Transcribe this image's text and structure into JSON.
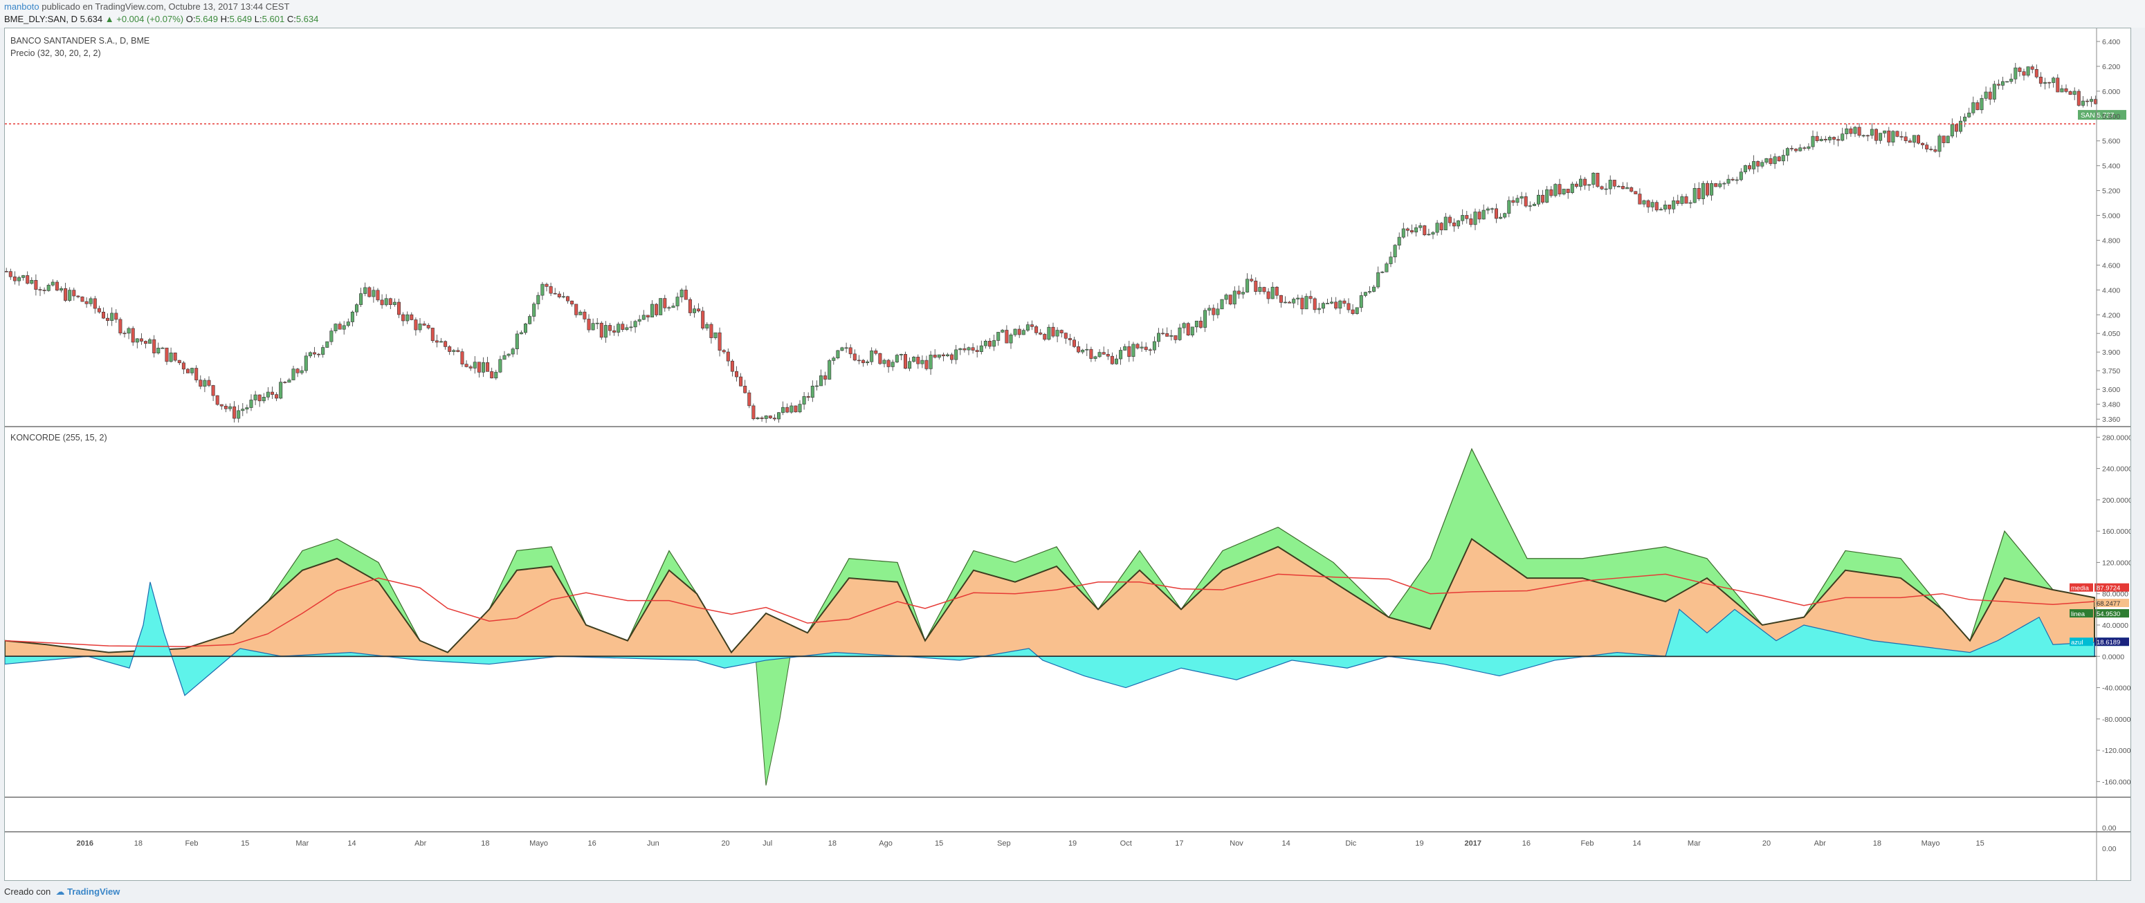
{
  "header": {
    "user": "manboto",
    "published": "publicado en TradingView.com, Octubre 13, 2017 13:44 CEST",
    "symbol": "BME_DLY:SAN, D",
    "last": "5.634",
    "change": "▲ +0.004 (+0.07%)",
    "o_label": "O:",
    "o": "5.649",
    "h_label": "H:",
    "h": "5.649",
    "l_label": "L:",
    "l": "5.601",
    "c_label": "C:",
    "c": "5.634"
  },
  "price_pane": {
    "title": "BANCO SANTANDER S.A., D, BME",
    "indicator": "Precio (32, 30, 20, 2, 2)",
    "ticks": [
      "6.400",
      "6.200",
      "6.000",
      "5.800",
      "5.600",
      "5.400",
      "5.200",
      "5.000",
      "4.800",
      "4.600",
      "4.400",
      "4.200",
      "4.050",
      "3.900",
      "3.750",
      "3.600",
      "3.480",
      "3.360"
    ],
    "tag_label": "SAN",
    "tag_value": "5.737",
    "colors": {
      "up": "#5fad6c",
      "down": "#d9544d",
      "ref_line": "#e53935"
    }
  },
  "koncorde_pane": {
    "title": "KONCORDE (255, 15, 2)",
    "ticks": [
      "280.0000",
      "240.0000",
      "200.0000",
      "160.0000",
      "120.0000",
      "80.0000",
      "40.0000",
      "0.0000",
      "-40.0000",
      "-80.0000",
      "-120.0000",
      "-160.0000"
    ],
    "labels": [
      {
        "name": "media",
        "value": "87.9724",
        "color": "#e53935"
      },
      {
        "name": "",
        "value": "68.2477",
        "color": "#e53935"
      },
      {
        "name": "",
        "value": "68.2477",
        "color": "#f7c08a"
      },
      {
        "name": "",
        "value": "54.9530",
        "color": "#2e7d32"
      },
      {
        "name": "linea",
        "value": "54.9530",
        "color": "#2e7d32"
      },
      {
        "name": "azul",
        "value": "18.6189",
        "color": "#00bcd4"
      },
      {
        "name": "",
        "value": "18.6189",
        "color": "#1a237e"
      }
    ],
    "colors": {
      "verde": "#8ef08e",
      "marron": "#f9c08e",
      "azul": "#5ef3ea",
      "media": "#e53935",
      "outline": "#3d3d1f",
      "cyan": "#18c7e8"
    }
  },
  "empty_pane": {
    "ticks": [
      "0.00",
      "0.00"
    ]
  },
  "x_axis": {
    "ticks": [
      "2016",
      "18",
      "Feb",
      "15",
      "Mar",
      "14",
      "Abr",
      "18",
      "Mayo",
      "16",
      "Jun",
      "20",
      "Jul",
      "18",
      "Ago",
      "15",
      "Sep",
      "19",
      "Oct",
      "17",
      "Nov",
      "14",
      "Dic",
      "19",
      "2017",
      "16",
      "Feb",
      "14",
      "Mar",
      "20",
      "Abr",
      "18",
      "Mayo",
      "15"
    ]
  },
  "chart_data": [
    {
      "type": "candlestick",
      "title": "BANCO SANTANDER S.A., D, BME",
      "x_range": [
        "2015-12-14",
        "2017-10-13"
      ],
      "ylim": [
        3.3,
        6.45
      ],
      "last_price": 5.737,
      "approx_closes": [
        {
          "x": "2015-12-14",
          "y": 4.55
        },
        {
          "x": "2016-01-04",
          "y": 4.3
        },
        {
          "x": "2016-01-18",
          "y": 4.0
        },
        {
          "x": "2016-02-01",
          "y": 3.75
        },
        {
          "x": "2016-02-11",
          "y": 3.4
        },
        {
          "x": "2016-02-24",
          "y": 3.6
        },
        {
          "x": "2016-03-10",
          "y": 4.1
        },
        {
          "x": "2016-03-18",
          "y": 4.4
        },
        {
          "x": "2016-04-07",
          "y": 3.95
        },
        {
          "x": "2016-04-20",
          "y": 3.7
        },
        {
          "x": "2016-05-03",
          "y": 4.45
        },
        {
          "x": "2016-05-18",
          "y": 4.05
        },
        {
          "x": "2016-06-08",
          "y": 4.35
        },
        {
          "x": "2016-06-17",
          "y": 4.0
        },
        {
          "x": "2016-06-27",
          "y": 3.4
        },
        {
          "x": "2016-07-08",
          "y": 3.42
        },
        {
          "x": "2016-07-20",
          "y": 3.9
        },
        {
          "x": "2016-08-10",
          "y": 3.8
        },
        {
          "x": "2016-09-08",
          "y": 4.1
        },
        {
          "x": "2016-09-28",
          "y": 3.85
        },
        {
          "x": "2016-10-20",
          "y": 4.1
        },
        {
          "x": "2016-11-04",
          "y": 4.45
        },
        {
          "x": "2016-11-16",
          "y": 4.3
        },
        {
          "x": "2016-12-02",
          "y": 4.25
        },
        {
          "x": "2016-12-14",
          "y": 4.85
        },
        {
          "x": "2017-01-10",
          "y": 5.05
        },
        {
          "x": "2017-02-01",
          "y": 5.3
        },
        {
          "x": "2017-02-20",
          "y": 5.05
        },
        {
          "x": "2017-03-20",
          "y": 5.45
        },
        {
          "x": "2017-04-12",
          "y": 5.7
        },
        {
          "x": "2017-05-02",
          "y": 5.55
        },
        {
          "x": "2017-05-25",
          "y": 6.2
        },
        {
          "x": "2017-06-12",
          "y": 5.9
        }
      ]
    },
    {
      "type": "area",
      "title": "KONCORDE (255, 15, 2)",
      "x_range": [
        "2015-12-14",
        "2017-10-13"
      ],
      "ylim": [
        -180,
        290
      ],
      "series": [
        {
          "name": "media",
          "values_last": 87.9724
        },
        {
          "name": "linea",
          "values_last": 54.953
        },
        {
          "name": "azul",
          "values_last": 18.6189
        }
      ]
    }
  ]
}
